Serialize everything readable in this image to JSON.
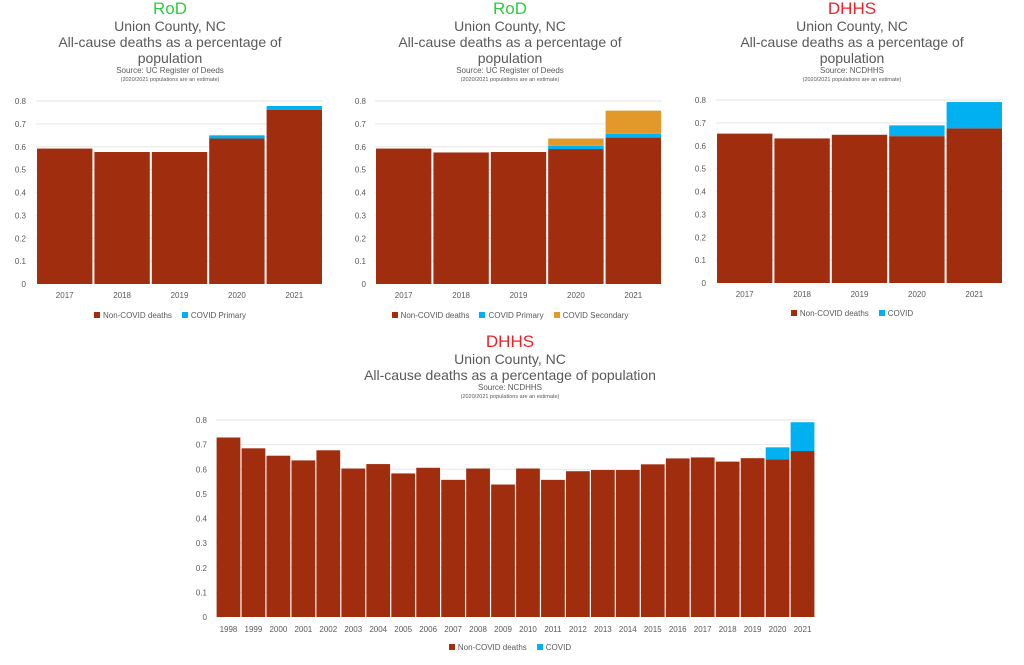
{
  "colors": {
    "non_covid": "#a12d0f",
    "covid": "#00b0f0",
    "covid_secondary": "#e3992a",
    "rod_title": "#2ecc40",
    "dhhs_title": "#e8232a",
    "gridline": "#e6e6e6"
  },
  "chart_data": [
    {
      "id": "rod-primary",
      "type": "bar",
      "stacked": true,
      "org_label": "RoD",
      "org_color": "#2ecc40",
      "title_line1": "Union County, NC",
      "title_line2": "All-cause deaths as a percentage of",
      "title_line3": "population",
      "source": "Source: UC Register of Deeds",
      "note": "(2020/2021 populations are an estimate)",
      "categories": [
        "2017",
        "2018",
        "2019",
        "2020",
        "2021"
      ],
      "series": [
        {
          "name": "Non-COVID deaths",
          "color": "#a12d0f",
          "values": [
            0.592,
            0.577,
            0.577,
            0.636,
            0.762
          ]
        },
        {
          "name": "COVID Primary",
          "color": "#00b0f0",
          "values": [
            0,
            0,
            0,
            0.014,
            0.016
          ]
        }
      ],
      "yticks": [
        "0",
        "0.1",
        "0.2",
        "0.3",
        "0.4",
        "0.5",
        "0.6",
        "0.7",
        "0.8"
      ],
      "ylim": [
        0,
        0.8
      ],
      "xlabel": "",
      "ylabel": "",
      "grid": true,
      "legend": "bottom"
    },
    {
      "id": "rod-secondary",
      "type": "bar",
      "stacked": true,
      "org_label": "RoD",
      "org_color": "#2ecc40",
      "title_line1": "Union County, NC",
      "title_line2": "All-cause deaths as a percentage of",
      "title_line3": "population",
      "source": "Source: UC Register of Deeds",
      "note": "(2020/2021 populations are an estimate)",
      "categories": [
        "2017",
        "2018",
        "2019",
        "2020",
        "2021"
      ],
      "series": [
        {
          "name": "Non-COVID deaths",
          "color": "#a12d0f",
          "values": [
            0.592,
            0.575,
            0.577,
            0.59,
            0.64
          ]
        },
        {
          "name": "COVID Primary",
          "color": "#00b0f0",
          "values": [
            0,
            0,
            0,
            0.014,
            0.016
          ]
        },
        {
          "name": "COVID Secondary",
          "color": "#e3992a",
          "values": [
            0,
            0,
            0,
            0.032,
            0.102
          ]
        }
      ],
      "yticks": [
        "0",
        "0.1",
        "0.2",
        "0.3",
        "0.4",
        "0.5",
        "0.6",
        "0.7",
        "0.8"
      ],
      "ylim": [
        0,
        0.8
      ],
      "xlabel": "",
      "ylabel": "",
      "grid": true,
      "legend": "bottom"
    },
    {
      "id": "dhhs-5yr",
      "type": "bar",
      "stacked": true,
      "org_label": "DHHS",
      "org_color": "#e8232a",
      "title_line1": "Union County, NC",
      "title_line2": "All-cause deaths as a percentage of",
      "title_line3": "population",
      "source": "Source: NCDHHS",
      "note": "(2020/2021 populations are an estimate)",
      "categories": [
        "2017",
        "2018",
        "2019",
        "2020",
        "2021"
      ],
      "series": [
        {
          "name": "Non-COVID deaths",
          "color": "#a12d0f",
          "values": [
            0.653,
            0.632,
            0.648,
            0.642,
            0.676
          ]
        },
        {
          "name": "COVID",
          "color": "#00b0f0",
          "values": [
            0,
            0,
            0,
            0.047,
            0.115
          ]
        }
      ],
      "yticks": [
        "0",
        "0.1",
        "0.2",
        "0.3",
        "0.4",
        "0.5",
        "0.6",
        "0.7",
        "0.8"
      ],
      "ylim": [
        0,
        0.8
      ],
      "xlabel": "",
      "ylabel": "",
      "grid": true,
      "legend": "bottom"
    },
    {
      "id": "dhhs-long",
      "type": "bar",
      "stacked": true,
      "org_label": "DHHS",
      "org_color": "#e8232a",
      "title_line1": "Union County, NC",
      "title_line2": "All-cause deaths as a percentage of population",
      "title_line3": "",
      "source": "Source: NCDHHS",
      "note": "(2020/2021 populations are an estimate)",
      "categories": [
        "1998",
        "1999",
        "2000",
        "2001",
        "2002",
        "2003",
        "2004",
        "2005",
        "2006",
        "2007",
        "2008",
        "2009",
        "2010",
        "2011",
        "2012",
        "2013",
        "2014",
        "2015",
        "2016",
        "2017",
        "2018",
        "2019",
        "2020",
        "2021"
      ],
      "series": [
        {
          "name": "Non-COVID deaths",
          "color": "#a12d0f",
          "values": [
            0.729,
            0.685,
            0.655,
            0.636,
            0.677,
            0.603,
            0.621,
            0.583,
            0.606,
            0.557,
            0.603,
            0.538,
            0.603,
            0.557,
            0.592,
            0.597,
            0.597,
            0.62,
            0.644,
            0.648,
            0.631,
            0.645,
            0.64,
            0.674
          ]
        },
        {
          "name": "COVID",
          "color": "#00b0f0",
          "values": [
            0,
            0,
            0,
            0,
            0,
            0,
            0,
            0,
            0,
            0,
            0,
            0,
            0,
            0,
            0,
            0,
            0,
            0,
            0,
            0,
            0,
            0,
            0.049,
            0.117
          ]
        }
      ],
      "yticks": [
        "0",
        "0.1",
        "0.2",
        "0.3",
        "0.4",
        "0.5",
        "0.6",
        "0.7",
        "0.8"
      ],
      "ylim": [
        0,
        0.8
      ],
      "xlabel": "",
      "ylabel": "",
      "grid": true,
      "legend": "bottom"
    }
  ]
}
